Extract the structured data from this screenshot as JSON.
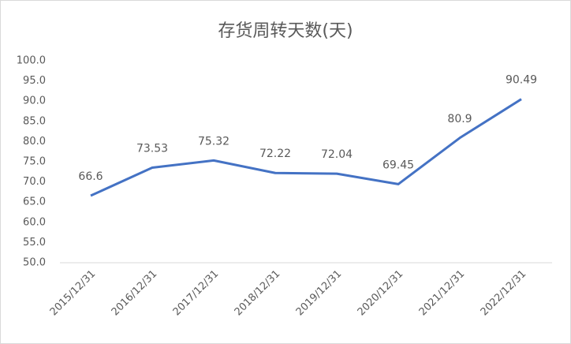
{
  "chart_data": {
    "type": "line",
    "title": "存货周转天数(天)",
    "categories": [
      "2015/12/31",
      "2016/12/31",
      "2017/12/31",
      "2018/12/31",
      "2019/12/31",
      "2020/12/31",
      "2021/12/31",
      "2022/12/31"
    ],
    "values": [
      66.6,
      73.53,
      75.32,
      72.22,
      72.04,
      69.45,
      80.9,
      90.49
    ],
    "color": "#4472c4",
    "ylim": [
      50,
      100
    ],
    "yticks": [
      {
        "value": 50,
        "label": "50.0"
      },
      {
        "value": 55,
        "label": "55.0"
      },
      {
        "value": 60,
        "label": "60.0"
      },
      {
        "value": 65,
        "label": "65.0"
      },
      {
        "value": 70,
        "label": "70.0"
      },
      {
        "value": 75,
        "label": "75.0"
      },
      {
        "value": 80,
        "label": "80.0"
      },
      {
        "value": 85,
        "label": "85.0"
      },
      {
        "value": 90,
        "label": "90.0"
      },
      {
        "value": 95,
        "label": "95.0"
      },
      {
        "value": 100,
        "label": "100.0"
      }
    ],
    "grid": false
  }
}
